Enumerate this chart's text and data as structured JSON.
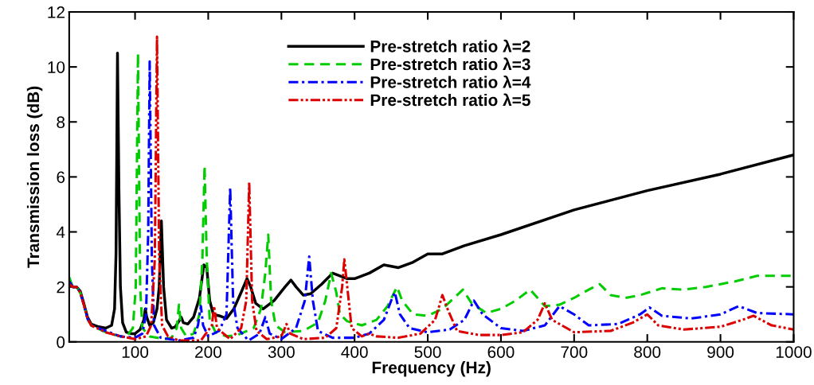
{
  "chart_data": {
    "type": "line",
    "xlabel": "Frequency (Hz)",
    "ylabel": "Transmission loss (dB)",
    "xlim": [
      10,
      1000
    ],
    "ylim": [
      0,
      12
    ],
    "xticks": [
      100,
      200,
      300,
      400,
      500,
      600,
      700,
      800,
      900,
      1000
    ],
    "yticks": [
      0,
      2,
      4,
      6,
      8,
      10,
      12
    ],
    "grid": false,
    "legend": "top",
    "marker": "none",
    "series": [
      {
        "name": "Pre-stretch ratio λ=2",
        "color": "#000000",
        "line_style": "solid",
        "x": [
          10,
          15,
          20,
          25,
          30,
          35,
          40,
          50,
          60,
          68,
          72,
          74,
          76,
          78,
          80,
          83,
          88,
          95,
          100,
          107,
          112,
          114,
          116,
          120,
          125,
          130,
          133,
          136,
          139,
          143,
          150,
          155,
          160,
          163,
          166,
          172,
          180,
          188,
          194,
          198,
          202,
          207,
          215,
          225,
          235,
          245,
          253,
          258,
          265,
          275,
          290,
          305,
          313,
          320,
          330,
          340,
          355,
          370,
          380,
          390,
          400,
          420,
          440,
          460,
          480,
          500,
          520,
          550,
          600,
          700,
          800,
          900,
          1000
        ],
        "values": [
          2.1,
          2.0,
          2.0,
          1.85,
          1.4,
          0.9,
          0.65,
          0.55,
          0.5,
          0.6,
          1.2,
          3.2,
          10.5,
          5.5,
          2.0,
          0.7,
          0.35,
          0.3,
          0.3,
          0.45,
          0.8,
          1.2,
          0.9,
          0.6,
          0.7,
          1.2,
          2.0,
          4.4,
          2.0,
          0.8,
          0.5,
          0.55,
          0.75,
          0.9,
          0.7,
          0.65,
          0.9,
          1.6,
          2.8,
          2.7,
          1.5,
          1.0,
          0.95,
          0.85,
          1.2,
          1.8,
          2.3,
          2.0,
          1.4,
          1.2,
          1.5,
          2.0,
          2.25,
          2.0,
          1.7,
          1.75,
          2.1,
          2.5,
          2.4,
          2.3,
          2.3,
          2.5,
          2.8,
          2.7,
          2.9,
          3.2,
          3.2,
          3.5,
          3.9,
          4.8,
          5.5,
          6.1,
          6.8
        ]
      },
      {
        "name": "Pre-stretch ratio λ=3",
        "color": "#00cc00",
        "line_style": "dashed",
        "x": [
          10,
          15,
          20,
          25,
          30,
          35,
          40,
          60,
          80,
          90,
          97,
          101,
          104,
          107,
          110,
          120,
          140,
          150,
          157,
          160,
          163,
          170,
          180,
          188,
          192,
          195,
          198,
          202,
          210,
          225,
          240,
          262,
          272,
          278,
          282,
          286,
          292,
          305,
          330,
          350,
          360,
          368,
          375,
          380,
          390,
          410,
          430,
          445,
          458,
          465,
          480,
          500,
          520,
          540,
          548,
          560,
          580,
          600,
          620,
          640,
          660,
          680,
          700,
          720,
          735,
          750,
          770,
          790,
          820,
          850,
          880,
          920,
          950,
          1000
        ],
        "values": [
          2.35,
          2.0,
          2.0,
          1.8,
          1.35,
          0.85,
          0.6,
          0.35,
          0.2,
          0.25,
          0.5,
          2.0,
          10.5,
          2.0,
          0.5,
          0.2,
          0.1,
          0.15,
          0.5,
          1.35,
          0.5,
          0.2,
          0.3,
          1.0,
          3.0,
          6.4,
          3.0,
          0.8,
          0.35,
          0.2,
          0.25,
          0.5,
          1.2,
          2.5,
          3.9,
          1.5,
          0.6,
          0.35,
          0.4,
          0.7,
          1.5,
          2.5,
          1.8,
          1.0,
          0.75,
          0.6,
          0.8,
          1.3,
          2.0,
          1.5,
          1.0,
          0.95,
          1.2,
          1.7,
          1.9,
          1.4,
          1.05,
          1.2,
          1.5,
          1.9,
          1.3,
          1.35,
          1.6,
          1.9,
          2.1,
          1.7,
          1.6,
          1.7,
          1.95,
          1.9,
          2.0,
          2.2,
          2.4,
          2.4
        ]
      },
      {
        "name": "Pre-stretch ratio λ=4",
        "color": "#0000ff",
        "line_style": "dashdot",
        "x": [
          10,
          15,
          20,
          25,
          30,
          35,
          40,
          60,
          80,
          100,
          110,
          115,
          118,
          120,
          123,
          126,
          135,
          160,
          180,
          186,
          190,
          193,
          200,
          215,
          225,
          230,
          234,
          240,
          255,
          270,
          278,
          284,
          300,
          320,
          332,
          338,
          343,
          350,
          370,
          400,
          420,
          440,
          450,
          455,
          462,
          475,
          500,
          530,
          550,
          563,
          575,
          600,
          630,
          660,
          680,
          700,
          720,
          760,
          790,
          803,
          820,
          860,
          900,
          925,
          950,
          1000
        ],
        "values": [
          2.2,
          2.0,
          2.0,
          1.8,
          1.35,
          0.85,
          0.6,
          0.4,
          0.2,
          0.15,
          0.3,
          1.0,
          4.0,
          10.2,
          3.0,
          0.6,
          0.15,
          0.05,
          0.15,
          0.6,
          1.3,
          0.6,
          0.2,
          0.4,
          1.0,
          5.6,
          1.5,
          0.5,
          0.05,
          0.3,
          0.9,
          0.3,
          0.1,
          0.5,
          1.5,
          3.1,
          1.5,
          0.4,
          0.15,
          0.15,
          0.3,
          0.8,
          1.5,
          1.8,
          1.0,
          0.5,
          0.35,
          0.45,
          0.8,
          1.5,
          1.0,
          0.5,
          0.4,
          0.6,
          1.3,
          1.0,
          0.6,
          0.65,
          1.0,
          1.25,
          0.95,
          0.85,
          1.0,
          1.3,
          1.05,
          1.0
        ]
      },
      {
        "name": "Pre-stretch ratio λ=5",
        "color": "#dd0000",
        "line_style": "dashdotdot",
        "x": [
          10,
          15,
          20,
          25,
          30,
          35,
          40,
          60,
          80,
          100,
          115,
          122,
          127,
          130,
          133,
          137,
          145,
          160,
          190,
          205,
          208,
          212,
          230,
          245,
          252,
          256,
          260,
          266,
          280,
          300,
          307,
          312,
          330,
          360,
          375,
          383,
          386,
          390,
          396,
          410,
          420,
          430,
          460,
          490,
          510,
          520,
          527,
          540,
          570,
          600,
          630,
          650,
          660,
          670,
          700,
          750,
          780,
          800,
          815,
          850,
          900,
          930,
          945,
          970,
          1000
        ],
        "values": [
          2.1,
          2.0,
          2.0,
          1.8,
          1.35,
          0.85,
          0.6,
          0.35,
          0.2,
          0.1,
          0.2,
          0.6,
          3.0,
          11.1,
          3.0,
          0.6,
          0.2,
          0.05,
          0.05,
          0.6,
          1.3,
          0.5,
          0.1,
          0.5,
          1.5,
          5.8,
          1.5,
          0.4,
          0.1,
          0.2,
          0.65,
          0.3,
          0.1,
          0.15,
          0.5,
          2.0,
          3.0,
          2.0,
          0.5,
          0.2,
          0.3,
          0.2,
          0.15,
          0.3,
          0.8,
          1.7,
          1.2,
          0.4,
          0.25,
          0.25,
          0.35,
          0.8,
          1.4,
          0.8,
          0.35,
          0.4,
          0.7,
          1.0,
          0.6,
          0.45,
          0.55,
          0.8,
          0.95,
          0.6,
          0.45
        ]
      }
    ]
  }
}
